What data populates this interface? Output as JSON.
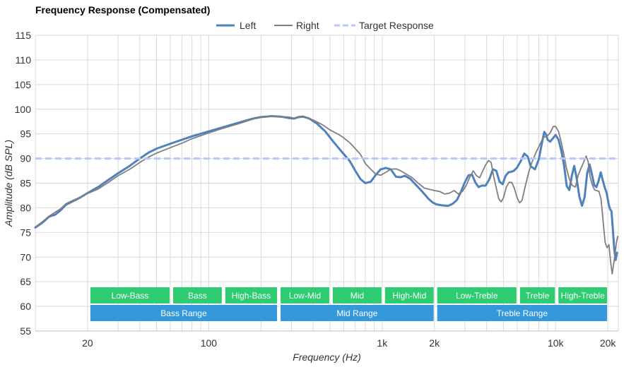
{
  "chart_data": {
    "type": "line",
    "title": "Frequency Response (Compensated)",
    "xlabel": "Frequency (Hz)",
    "ylabel": "Amplitude (dB SPL)",
    "xscale": "log",
    "xlim": [
      10,
      23000
    ],
    "ylim": [
      55,
      115
    ],
    "yticks": [
      55,
      60,
      65,
      70,
      75,
      80,
      85,
      90,
      95,
      100,
      105,
      110,
      115
    ],
    "xticks": [
      {
        "value": 20,
        "label": "20"
      },
      {
        "value": 100,
        "label": "100"
      },
      {
        "value": 1000,
        "label": "1k"
      },
      {
        "value": 2000,
        "label": "2k"
      },
      {
        "value": 10000,
        "label": "10k"
      },
      {
        "value": 20000,
        "label": "20k"
      }
    ],
    "grid": true,
    "legend_position": "top-center",
    "series": [
      {
        "name": "Left",
        "color": "#4f81bd",
        "style": "solid",
        "points": [
          [
            10,
            76
          ],
          [
            11,
            77
          ],
          [
            12,
            78.2
          ],
          [
            13,
            78.6
          ],
          [
            14,
            79.5
          ],
          [
            15,
            80.6
          ],
          [
            16,
            81.1
          ],
          [
            18,
            82
          ],
          [
            20,
            83
          ],
          [
            23,
            84.2
          ],
          [
            26,
            85.5
          ],
          [
            30,
            87
          ],
          [
            35,
            88.5
          ],
          [
            40,
            90
          ],
          [
            45,
            91.2
          ],
          [
            50,
            92
          ],
          [
            60,
            93
          ],
          [
            70,
            93.8
          ],
          [
            80,
            94.5
          ],
          [
            100,
            95.5
          ],
          [
            120,
            96.3
          ],
          [
            150,
            97.3
          ],
          [
            180,
            98.1
          ],
          [
            200,
            98.4
          ],
          [
            230,
            98.6
          ],
          [
            260,
            98.5
          ],
          [
            290,
            98.2
          ],
          [
            310,
            98.1
          ],
          [
            330,
            98.4
          ],
          [
            350,
            98.5
          ],
          [
            380,
            98.1
          ],
          [
            420,
            97.1
          ],
          [
            470,
            95.5
          ],
          [
            520,
            93.5
          ],
          [
            580,
            91.5
          ],
          [
            650,
            89.5
          ],
          [
            700,
            87.5
          ],
          [
            750,
            85.8
          ],
          [
            800,
            85
          ],
          [
            860,
            85.3
          ],
          [
            920,
            86.7
          ],
          [
            980,
            87.8
          ],
          [
            1050,
            88.1
          ],
          [
            1120,
            87.8
          ],
          [
            1200,
            86.3
          ],
          [
            1280,
            86.2
          ],
          [
            1350,
            86.5
          ],
          [
            1450,
            85.9
          ],
          [
            1550,
            84.8
          ],
          [
            1650,
            83.8
          ],
          [
            1750,
            82.8
          ],
          [
            1850,
            81.8
          ],
          [
            1950,
            81.1
          ],
          [
            2050,
            80.7
          ],
          [
            2200,
            80.5
          ],
          [
            2400,
            80.4
          ],
          [
            2550,
            80.8
          ],
          [
            2700,
            81.6
          ],
          [
            2850,
            83.3
          ],
          [
            3000,
            85.2
          ],
          [
            3150,
            86.6
          ],
          [
            3300,
            86.7
          ],
          [
            3450,
            85.1
          ],
          [
            3600,
            84.2
          ],
          [
            3750,
            84.5
          ],
          [
            3950,
            84.5
          ],
          [
            4150,
            85.8
          ],
          [
            4350,
            87.8
          ],
          [
            4550,
            87.5
          ],
          [
            4750,
            85.3
          ],
          [
            4950,
            84.8
          ],
          [
            5150,
            86.5
          ],
          [
            5350,
            87.2
          ],
          [
            5550,
            87.3
          ],
          [
            5750,
            87.5
          ],
          [
            6000,
            88.2
          ],
          [
            6300,
            89.5
          ],
          [
            6600,
            91
          ],
          [
            6900,
            90.4
          ],
          [
            7200,
            88.4
          ],
          [
            7600,
            87.8
          ],
          [
            8000,
            89.8
          ],
          [
            8300,
            92.8
          ],
          [
            8600,
            95.4
          ],
          [
            8800,
            94.9
          ],
          [
            9000,
            93.8
          ],
          [
            9300,
            93.4
          ],
          [
            9700,
            94.2
          ],
          [
            10000,
            94.8
          ],
          [
            10400,
            93.8
          ],
          [
            10800,
            91.5
          ],
          [
            11200,
            88.5
          ],
          [
            11600,
            84.4
          ],
          [
            12000,
            83.6
          ],
          [
            12400,
            86.5
          ],
          [
            12800,
            88.5
          ],
          [
            13200,
            86.2
          ],
          [
            13700,
            82.3
          ],
          [
            14200,
            80.4
          ],
          [
            14700,
            82.2
          ],
          [
            15200,
            87
          ],
          [
            15700,
            88.8
          ],
          [
            16200,
            86.8
          ],
          [
            16700,
            84.6
          ],
          [
            17200,
            84.2
          ],
          [
            17700,
            85.5
          ],
          [
            18200,
            87.2
          ],
          [
            18700,
            85.6
          ],
          [
            19200,
            84.1
          ],
          [
            19700,
            83
          ],
          [
            20200,
            80.8
          ],
          [
            20600,
            79.7
          ],
          [
            21000,
            79.3
          ],
          [
            21400,
            75.5
          ],
          [
            21800,
            71.5
          ],
          [
            22200,
            69.4
          ],
          [
            22600,
            70.9
          ]
        ]
      },
      {
        "name": "Right",
        "color": "#7f7f7f",
        "style": "solid",
        "points": [
          [
            10,
            76.1
          ],
          [
            11,
            77.2
          ],
          [
            12,
            78.3
          ],
          [
            13,
            79.1
          ],
          [
            14,
            79.8
          ],
          [
            15,
            80.8
          ],
          [
            16,
            81.3
          ],
          [
            18,
            82.1
          ],
          [
            20,
            82.9
          ],
          [
            23,
            83.8
          ],
          [
            26,
            85
          ],
          [
            30,
            86.5
          ],
          [
            35,
            87.8
          ],
          [
            40,
            89.2
          ],
          [
            45,
            90.3
          ],
          [
            50,
            91.1
          ],
          [
            60,
            92.2
          ],
          [
            70,
            93.1
          ],
          [
            80,
            94
          ],
          [
            100,
            95.2
          ],
          [
            120,
            96.1
          ],
          [
            150,
            97.1
          ],
          [
            180,
            98
          ],
          [
            200,
            98.4
          ],
          [
            230,
            98.6
          ],
          [
            260,
            98.5
          ],
          [
            290,
            98.4
          ],
          [
            310,
            98.2
          ],
          [
            330,
            98.5
          ],
          [
            350,
            98.6
          ],
          [
            400,
            97.8
          ],
          [
            450,
            96.9
          ],
          [
            500,
            95.8
          ],
          [
            560,
            94.9
          ],
          [
            600,
            94.2
          ],
          [
            650,
            93.2
          ],
          [
            700,
            92
          ],
          [
            750,
            90.8
          ],
          [
            800,
            89
          ],
          [
            860,
            87.8
          ],
          [
            920,
            86.8
          ],
          [
            980,
            86.6
          ],
          [
            1050,
            87.2
          ],
          [
            1120,
            87.8
          ],
          [
            1200,
            87.9
          ],
          [
            1280,
            87.5
          ],
          [
            1380,
            86.8
          ],
          [
            1480,
            86.2
          ],
          [
            1600,
            85.1
          ],
          [
            1750,
            84
          ],
          [
            1900,
            83.7
          ],
          [
            2000,
            83.5
          ],
          [
            2150,
            83.3
          ],
          [
            2300,
            82.8
          ],
          [
            2450,
            83
          ],
          [
            2600,
            83.5
          ],
          [
            2750,
            82.8
          ],
          [
            2900,
            83.3
          ],
          [
            3050,
            84.5
          ],
          [
            3200,
            86.2
          ],
          [
            3350,
            87.5
          ],
          [
            3500,
            86.5
          ],
          [
            3650,
            86.1
          ],
          [
            3800,
            87.5
          ],
          [
            3950,
            88.7
          ],
          [
            4100,
            89.6
          ],
          [
            4250,
            89.2
          ],
          [
            4400,
            86.3
          ],
          [
            4550,
            84
          ],
          [
            4700,
            81.8
          ],
          [
            4850,
            81.2
          ],
          [
            5000,
            82
          ],
          [
            5200,
            84.2
          ],
          [
            5400,
            85.2
          ],
          [
            5600,
            85.1
          ],
          [
            5800,
            83.8
          ],
          [
            6000,
            82
          ],
          [
            6200,
            81
          ],
          [
            6400,
            81.5
          ],
          [
            6700,
            84.5
          ],
          [
            7000,
            87.2
          ],
          [
            7300,
            89.2
          ],
          [
            7700,
            91.2
          ],
          [
            8100,
            92.8
          ],
          [
            8500,
            94.3
          ],
          [
            8900,
            94.5
          ],
          [
            9300,
            95.2
          ],
          [
            9700,
            96.5
          ],
          [
            10000,
            96.5
          ],
          [
            10400,
            95.5
          ],
          [
            10800,
            93.2
          ],
          [
            11200,
            90.5
          ],
          [
            11600,
            87.8
          ],
          [
            12000,
            85.8
          ],
          [
            12500,
            84.5
          ],
          [
            13000,
            84.2
          ],
          [
            13500,
            86.6
          ],
          [
            14000,
            88
          ],
          [
            14500,
            89.2
          ],
          [
            15000,
            90.5
          ],
          [
            15400,
            89.4
          ],
          [
            15800,
            86.3
          ],
          [
            16300,
            84.6
          ],
          [
            16800,
            83.6
          ],
          [
            17300,
            83.5
          ],
          [
            17800,
            83.3
          ],
          [
            18300,
            81.7
          ],
          [
            18800,
            77.2
          ],
          [
            19300,
            73
          ],
          [
            19800,
            71.9
          ],
          [
            20300,
            72.5
          ],
          [
            20800,
            68.8
          ],
          [
            21200,
            66.6
          ],
          [
            21600,
            68.5
          ],
          [
            22000,
            70.5
          ],
          [
            22400,
            72.9
          ],
          [
            22800,
            74.2
          ]
        ]
      },
      {
        "name": "Target Response",
        "color": "#b4c7ff",
        "style": "dashed",
        "points": [
          [
            10,
            90
          ],
          [
            23000,
            90
          ]
        ]
      }
    ],
    "bands": [
      {
        "label": "Low-Bass",
        "from": 20,
        "to": 60,
        "row": 1,
        "color": "#2ecc71"
      },
      {
        "label": "Bass",
        "from": 60,
        "to": 120,
        "row": 1,
        "color": "#2ecc71"
      },
      {
        "label": "High-Bass",
        "from": 120,
        "to": 250,
        "row": 1,
        "color": "#2ecc71"
      },
      {
        "label": "Low-Mid",
        "from": 250,
        "to": 500,
        "row": 1,
        "color": "#2ecc71"
      },
      {
        "label": "Mid",
        "from": 500,
        "to": 1000,
        "row": 1,
        "color": "#2ecc71"
      },
      {
        "label": "High-Mid",
        "from": 1000,
        "to": 2000,
        "row": 1,
        "color": "#2ecc71"
      },
      {
        "label": "Low-Treble",
        "from": 2000,
        "to": 6000,
        "row": 1,
        "color": "#2ecc71"
      },
      {
        "label": "Treble",
        "from": 6000,
        "to": 10000,
        "row": 1,
        "color": "#2ecc71"
      },
      {
        "label": "High-Treble",
        "from": 10000,
        "to": 20000,
        "row": 1,
        "color": "#2ecc71"
      },
      {
        "label": "Bass Range",
        "from": 20,
        "to": 250,
        "row": 2,
        "color": "#3498db"
      },
      {
        "label": "Mid Range",
        "from": 250,
        "to": 2000,
        "row": 2,
        "color": "#3498db"
      },
      {
        "label": "Treble Range",
        "from": 2000,
        "to": 20000,
        "row": 2,
        "color": "#3498db"
      }
    ]
  }
}
